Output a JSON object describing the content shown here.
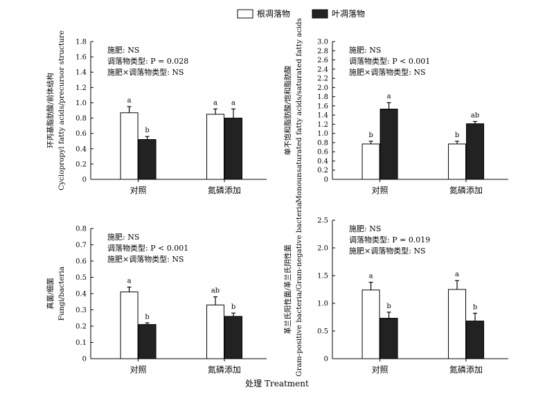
{
  "legend": {
    "items": [
      {
        "label": "根凋落物",
        "color": "#ffffff"
      },
      {
        "label": "叶凋落物",
        "color": "#222222"
      }
    ]
  },
  "x_title": "处理 Treatment",
  "chart_data": [
    {
      "type": "bar",
      "categories": [
        "对照",
        "氮磷添加"
      ],
      "series": [
        {
          "name": "根凋落物",
          "values": [
            0.87,
            0.85
          ],
          "errors": [
            0.08,
            0.07
          ],
          "letters": [
            "a",
            "a"
          ]
        },
        {
          "name": "叶凋落物",
          "values": [
            0.52,
            0.8
          ],
          "errors": [
            0.04,
            0.12
          ],
          "letters": [
            "b",
            "a"
          ]
        }
      ],
      "ylabel": [
        "环丙基脂肪酸/前体结构",
        "Cyclopropyl fatty acids/precursor structure"
      ],
      "ylim": [
        0,
        1.8
      ],
      "yticks": [
        "0",
        "0.2",
        "0.4",
        "0.6",
        "0.8",
        "1.0",
        "1.2",
        "1.4",
        "1.6",
        "1.8"
      ],
      "annotations": [
        "施肥: NS",
        "调落物类型: P = 0.028",
        "施肥×调落物类型: NS"
      ]
    },
    {
      "type": "bar",
      "categories": [
        "对照",
        "氮磷添加"
      ],
      "series": [
        {
          "name": "根凋落物",
          "values": [
            0.77,
            0.77
          ],
          "errors": [
            0.06,
            0.06
          ],
          "letters": [
            "b",
            "b"
          ]
        },
        {
          "name": "叶凋落物",
          "values": [
            1.53,
            1.21
          ],
          "errors": [
            0.14,
            0.05
          ],
          "letters": [
            "a",
            "ab"
          ]
        }
      ],
      "ylabel": [
        "单不饱和脂肪酸/饱和脂肪酸",
        "Monounsaturated fatty acids/saturated fatty acids"
      ],
      "ylim": [
        0,
        3.0
      ],
      "yticks": [
        "0",
        "0.2",
        "0.4",
        "0.6",
        "0.8",
        "1.0",
        "1.2",
        "1.4",
        "1.6",
        "1.8",
        "2.0",
        "2.2",
        "2.4",
        "2.6",
        "2.8",
        "3.0"
      ],
      "annotations": [
        "施肥: NS",
        "调落物类型: P < 0.001",
        "施肥×调落物类型: NS"
      ]
    },
    {
      "type": "bar",
      "categories": [
        "对照",
        "氮磷添加"
      ],
      "series": [
        {
          "name": "根凋落物",
          "values": [
            0.41,
            0.33
          ],
          "errors": [
            0.03,
            0.05
          ],
          "letters": [
            "a",
            "ab"
          ]
        },
        {
          "name": "叶凋落物",
          "values": [
            0.21,
            0.26
          ],
          "errors": [
            0.01,
            0.02
          ],
          "letters": [
            "b",
            "b"
          ]
        }
      ],
      "ylabel": [
        "真菌/细菌",
        "Fungi/bacteria"
      ],
      "ylim": [
        0,
        0.8
      ],
      "yticks": [
        "0",
        "0.1",
        "0.2",
        "0.3",
        "0.4",
        "0.5",
        "0.6",
        "0.7",
        "0.8"
      ],
      "annotations": [
        "施肥: NS",
        "调落物类型: P < 0.001",
        "施肥×调落物类型: NS"
      ]
    },
    {
      "type": "bar",
      "categories": [
        "对照",
        "氮磷添加"
      ],
      "series": [
        {
          "name": "根凋落物",
          "values": [
            1.24,
            1.25
          ],
          "errors": [
            0.14,
            0.16
          ],
          "letters": [
            "a",
            "a"
          ]
        },
        {
          "name": "叶凋落物",
          "values": [
            0.73,
            0.68
          ],
          "errors": [
            0.11,
            0.14
          ],
          "letters": [
            "b",
            "b"
          ]
        }
      ],
      "ylabel": [
        "革兰氏阳性菌/革兰氏阴性菌",
        "Gram-positive bacteria/Gram-negative bacteria"
      ],
      "ylim": [
        0,
        2.5
      ],
      "yticks": [
        "0",
        "0.5",
        "1.0",
        "1.5",
        "2.0",
        "2.5"
      ],
      "annotations": [
        "施肥: NS",
        "调落物类型: P = 0.019",
        "施肥×调落物类型: NS"
      ]
    }
  ]
}
